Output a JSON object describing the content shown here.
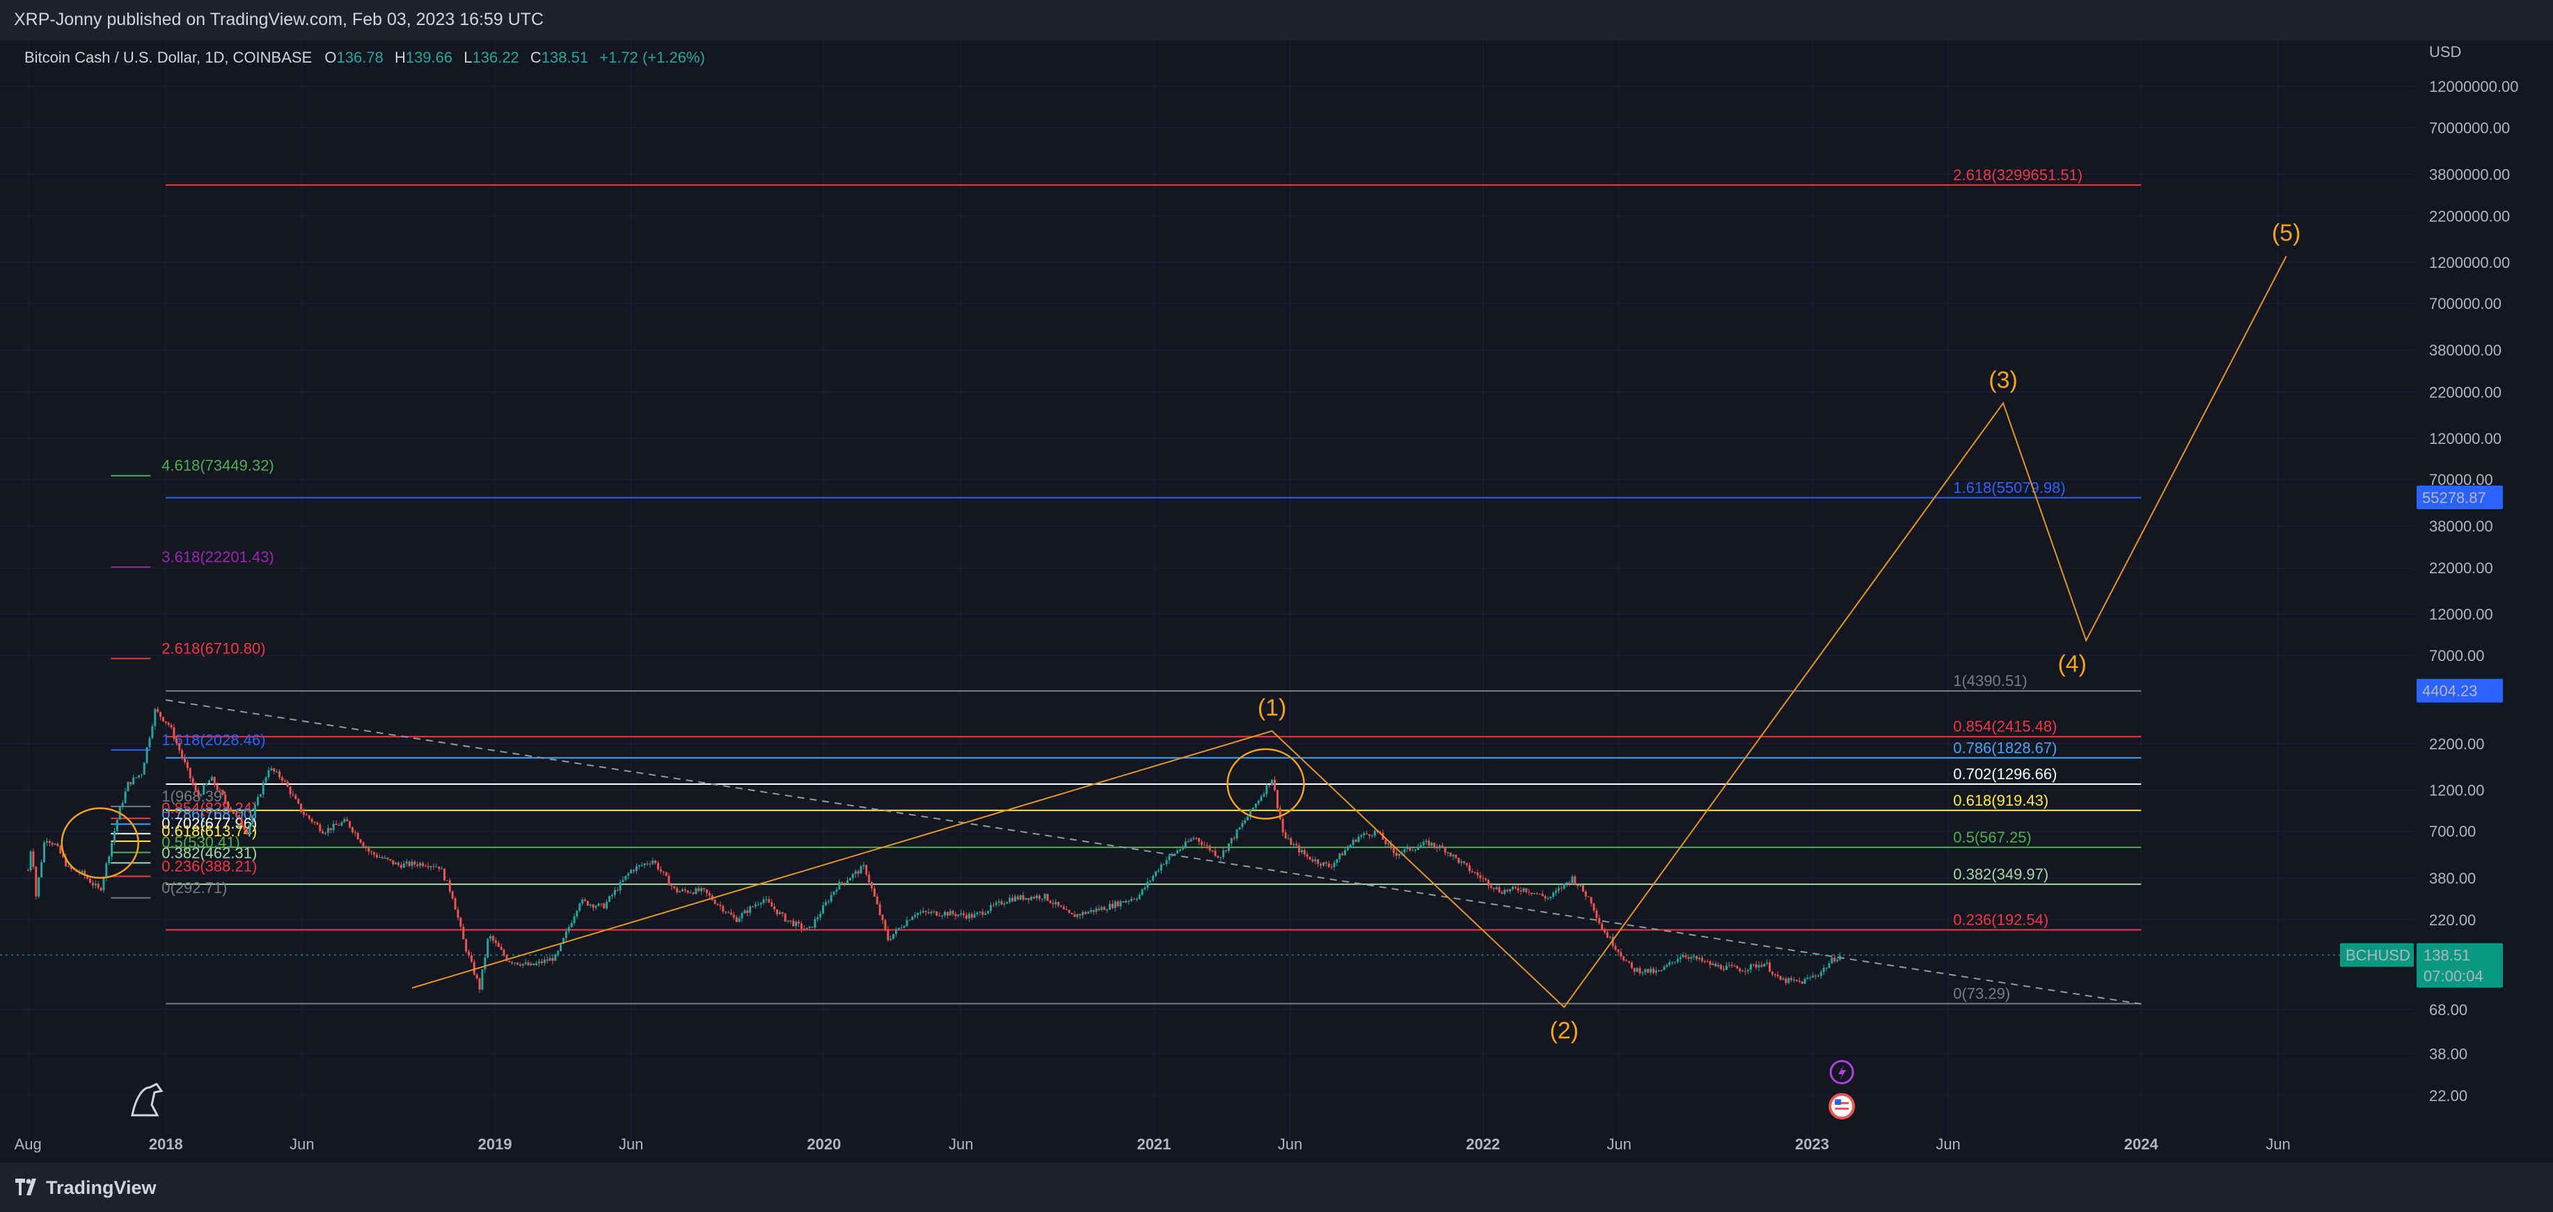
{
  "header": {
    "published": "XRP-Jonny published on TradingView.com, Feb 03, 2023 16:59 UTC"
  },
  "footer": {
    "brand": "TradingView"
  },
  "legend": {
    "symbol": "Bitcoin Cash / U.S. Dollar, 1D, COINBASE",
    "o_label": "O",
    "o": "136.78",
    "h_label": "H",
    "h": "139.66",
    "l_label": "L",
    "l": "136.22",
    "c_label": "C",
    "c": "138.51",
    "change": "+1.72 (+1.26%)"
  },
  "colors": {
    "bg": "#131722",
    "up": "#26a69a",
    "down": "#ef5350",
    "wave": "#f7a21b"
  },
  "chart_data": {
    "type": "candlestick",
    "symbol": "BCHUSD",
    "interval": "1D",
    "exchange": "COINBASE",
    "scale": "log",
    "currency": "USD",
    "ylim": [
      17,
      20000000
    ],
    "xlim": [
      "2017-07-01",
      "2024-10-31"
    ],
    "y_ticks": [
      "12000000.00",
      "7000000.00",
      "3800000.00",
      "2200000.00",
      "1200000.00",
      "700000.00",
      "380000.00",
      "220000.00",
      "120000.00",
      "70000.00",
      "38000.00",
      "22000.00",
      "12000.00",
      "7000.00",
      "2200.00",
      "1200.00",
      "700.00",
      "380.00",
      "220.00",
      "68.00",
      "38.00",
      "22.00"
    ],
    "x_ticks": [
      {
        "label": "Aug",
        "date": "2017-08-01"
      },
      {
        "label": "2018",
        "date": "2018-01-01"
      },
      {
        "label": "Jun",
        "date": "2018-06-01"
      },
      {
        "label": "2019",
        "date": "2019-01-01"
      },
      {
        "label": "Jun",
        "date": "2019-06-01"
      },
      {
        "label": "2020",
        "date": "2020-01-01"
      },
      {
        "label": "Jun",
        "date": "2020-06-01"
      },
      {
        "label": "2021",
        "date": "2021-01-01"
      },
      {
        "label": "Jun",
        "date": "2021-06-01"
      },
      {
        "label": "2022",
        "date": "2022-01-01"
      },
      {
        "label": "Jun",
        "date": "2022-06-01"
      },
      {
        "label": "2023",
        "date": "2023-01-01"
      },
      {
        "label": "Jun",
        "date": "2023-06-01"
      },
      {
        "label": "2024",
        "date": "2024-01-01"
      },
      {
        "label": "Jun",
        "date": "2024-06-01"
      }
    ],
    "price_path": [
      [
        "2017-08-01",
        420
      ],
      [
        "2017-08-05",
        600
      ],
      [
        "2017-08-10",
        300
      ],
      [
        "2017-08-20",
        650
      ],
      [
        "2017-09-01",
        580
      ],
      [
        "2017-09-15",
        430
      ],
      [
        "2017-10-01",
        400
      ],
      [
        "2017-10-20",
        320
      ],
      [
        "2017-11-10",
        900
      ],
      [
        "2017-11-20",
        1300
      ],
      [
        "2017-12-05",
        1500
      ],
      [
        "2017-12-20",
        3400
      ],
      [
        "2018-01-05",
        2800
      ],
      [
        "2018-01-20",
        1800
      ],
      [
        "2018-02-05",
        1100
      ],
      [
        "2018-02-20",
        1400
      ],
      [
        "2018-03-10",
        1000
      ],
      [
        "2018-04-01",
        700
      ],
      [
        "2018-04-25",
        1600
      ],
      [
        "2018-05-10",
        1400
      ],
      [
        "2018-06-01",
        900
      ],
      [
        "2018-06-25",
        700
      ],
      [
        "2018-07-20",
        800
      ],
      [
        "2018-08-15",
        530
      ],
      [
        "2018-09-15",
        450
      ],
      [
        "2018-10-15",
        460
      ],
      [
        "2018-11-01",
        440
      ],
      [
        "2018-11-15",
        300
      ],
      [
        "2018-11-28",
        160
      ],
      [
        "2018-12-15",
        90
      ],
      [
        "2018-12-25",
        180
      ],
      [
        "2019-01-15",
        130
      ],
      [
        "2019-02-10",
        120
      ],
      [
        "2019-03-10",
        135
      ],
      [
        "2019-04-05",
        280
      ],
      [
        "2019-05-01",
        260
      ],
      [
        "2019-06-01",
        420
      ],
      [
        "2019-06-25",
        480
      ],
      [
        "2019-07-20",
        320
      ],
      [
        "2019-08-20",
        320
      ],
      [
        "2019-09-25",
        220
      ],
      [
        "2019-10-25",
        290
      ],
      [
        "2019-11-20",
        220
      ],
      [
        "2019-12-15",
        190
      ],
      [
        "2020-01-15",
        340
      ],
      [
        "2020-02-15",
        440
      ],
      [
        "2020-03-12",
        170
      ],
      [
        "2020-04-10",
        240
      ],
      [
        "2020-05-15",
        240
      ],
      [
        "2020-06-15",
        230
      ],
      [
        "2020-07-25",
        290
      ],
      [
        "2020-09-01",
        300
      ],
      [
        "2020-10-01",
        230
      ],
      [
        "2020-11-10",
        260
      ],
      [
        "2020-12-15",
        300
      ],
      [
        "2021-01-10",
        460
      ],
      [
        "2021-02-15",
        650
      ],
      [
        "2021-03-15",
        500
      ],
      [
        "2021-04-15",
        850
      ],
      [
        "2021-05-12",
        1400
      ],
      [
        "2021-05-25",
        650
      ],
      [
        "2021-06-20",
        500
      ],
      [
        "2021-07-15",
        440
      ],
      [
        "2021-08-15",
        650
      ],
      [
        "2021-09-05",
        700
      ],
      [
        "2021-09-25",
        520
      ],
      [
        "2021-11-01",
        600
      ],
      [
        "2021-11-20",
        550
      ],
      [
        "2021-12-15",
        430
      ],
      [
        "2022-01-20",
        320
      ],
      [
        "2022-02-15",
        330
      ],
      [
        "2022-03-15",
        290
      ],
      [
        "2022-04-10",
        380
      ],
      [
        "2022-05-01",
        280
      ],
      [
        "2022-05-12",
        200
      ],
      [
        "2022-06-15",
        115
      ],
      [
        "2022-07-15",
        110
      ],
      [
        "2022-08-10",
        140
      ],
      [
        "2022-09-15",
        120
      ],
      [
        "2022-10-15",
        115
      ],
      [
        "2022-11-10",
        125
      ],
      [
        "2022-11-25",
        100
      ],
      [
        "2022-12-20",
        97
      ],
      [
        "2023-01-10",
        110
      ],
      [
        "2023-01-25",
        132
      ],
      [
        "2023-02-03",
        138.51
      ]
    ],
    "trendline_dashed": [
      [
        "2018-01-01",
        3900
      ],
      [
        "2024-01-01",
        73
      ]
    ],
    "fib_extension_right": {
      "start_date": "2018-01-01",
      "end_date": "2024-01-01",
      "levels": [
        {
          "ratio": "2.618",
          "price": 3299651.51,
          "label": "2.618(3299651.51)",
          "color": "#f23645"
        },
        {
          "ratio": "1.618",
          "price": 55079.98,
          "label": "1.618(55079.98)",
          "color": "#2962ff"
        },
        {
          "ratio": "1",
          "price": 4390.51,
          "label": "1(4390.51)",
          "color": "#787b86"
        },
        {
          "ratio": "0.854",
          "price": 2415.48,
          "label": "0.854(2415.48)",
          "color": "#f23645"
        },
        {
          "ratio": "0.786",
          "price": 1828.67,
          "label": "0.786(1828.67)",
          "color": "#42a5f5"
        },
        {
          "ratio": "0.702",
          "price": 1296.66,
          "label": "0.702(1296.66)",
          "color": "#ffffff"
        },
        {
          "ratio": "0.618",
          "price": 919.43,
          "label": "0.618(919.43)",
          "color": "#ffeb3b"
        },
        {
          "ratio": "0.5",
          "price": 567.25,
          "label": "0.5(567.25)",
          "color": "#4caf50"
        },
        {
          "ratio": "0.382",
          "price": 349.97,
          "label": "0.382(349.97)",
          "color": "#a5d6a7"
        },
        {
          "ratio": "0.236",
          "price": 192.54,
          "label": "0.236(192.54)",
          "color": "#f23645"
        },
        {
          "ratio": "0",
          "price": 73.29,
          "label": "0(73.29)",
          "color": "#787b86"
        }
      ]
    },
    "fib_extension_left": {
      "start_date": "2017-11-01",
      "end_date": "2017-12-15",
      "levels": [
        {
          "ratio": "4.618",
          "price": 73449.32,
          "label": "4.618(73449.32)",
          "color": "#4caf50"
        },
        {
          "ratio": "3.618",
          "price": 22201.43,
          "label": "3.618(22201.43)",
          "color": "#9c27b0"
        },
        {
          "ratio": "2.618",
          "price": 6710.8,
          "label": "2.618(6710.80)",
          "color": "#f23645"
        },
        {
          "ratio": "1.618",
          "price": 2028.46,
          "label": "1.618(2028.46)",
          "color": "#2962ff"
        },
        {
          "ratio": "1",
          "price": 968.39,
          "label": "1(968.39)",
          "color": "#787b86"
        },
        {
          "ratio": "0.854",
          "price": 828.24,
          "label": "0.854(828.24)",
          "color": "#f23645"
        },
        {
          "ratio": "0.786",
          "price": 768.0,
          "label": "0.786(768.00)",
          "color": "#42a5f5"
        },
        {
          "ratio": "0.702",
          "price": 677.96,
          "label": "0.702(677.96)",
          "color": "#ffffff"
        },
        {
          "ratio": "0.618",
          "price": 613.74,
          "label": "0.618(613.74)",
          "color": "#ffeb3b"
        },
        {
          "ratio": "0.5",
          "price": 530.41,
          "label": "0.5(530.41)",
          "color": "#4caf50"
        },
        {
          "ratio": "0.382",
          "price": 462.31,
          "label": "0.382(462.31)",
          "color": "#a5d6a7"
        },
        {
          "ratio": "0.236",
          "price": 388.21,
          "label": "0.236(388.21)",
          "color": "#f23645"
        },
        {
          "ratio": "0",
          "price": 292.71,
          "label": "0(292.71)",
          "color": "#787b86"
        }
      ]
    },
    "elliott_waves": [
      {
        "label": "",
        "date": "2018-10-01",
        "price": 90
      },
      {
        "label": "(1)",
        "date": "2021-05-12",
        "price": 2600
      },
      {
        "label": "(2)",
        "date": "2022-04-01",
        "price": 70
      },
      {
        "label": "(3)",
        "date": "2023-08-01",
        "price": 190000
      },
      {
        "label": "(4)",
        "date": "2023-11-01",
        "price": 8500
      },
      {
        "label": "(5)",
        "date": "2024-06-10",
        "price": 1300000
      }
    ],
    "circles": [
      {
        "date": "2017-10-20",
        "price": 600
      },
      {
        "date": "2021-05-05",
        "price": 1300
      }
    ],
    "price_badges": [
      {
        "value": "55278.87",
        "price": 55278.87,
        "color": "#2962ff"
      },
      {
        "value": "4404.23",
        "price": 4404.23,
        "color": "#2962ff"
      }
    ],
    "last_price": {
      "symbol": "BCHUSD",
      "value": "138.51",
      "countdown": "07:00:04",
      "price": 138.51,
      "color": "#089981"
    },
    "event_icons": [
      "lightning-icon",
      "us-flag-icon"
    ]
  }
}
